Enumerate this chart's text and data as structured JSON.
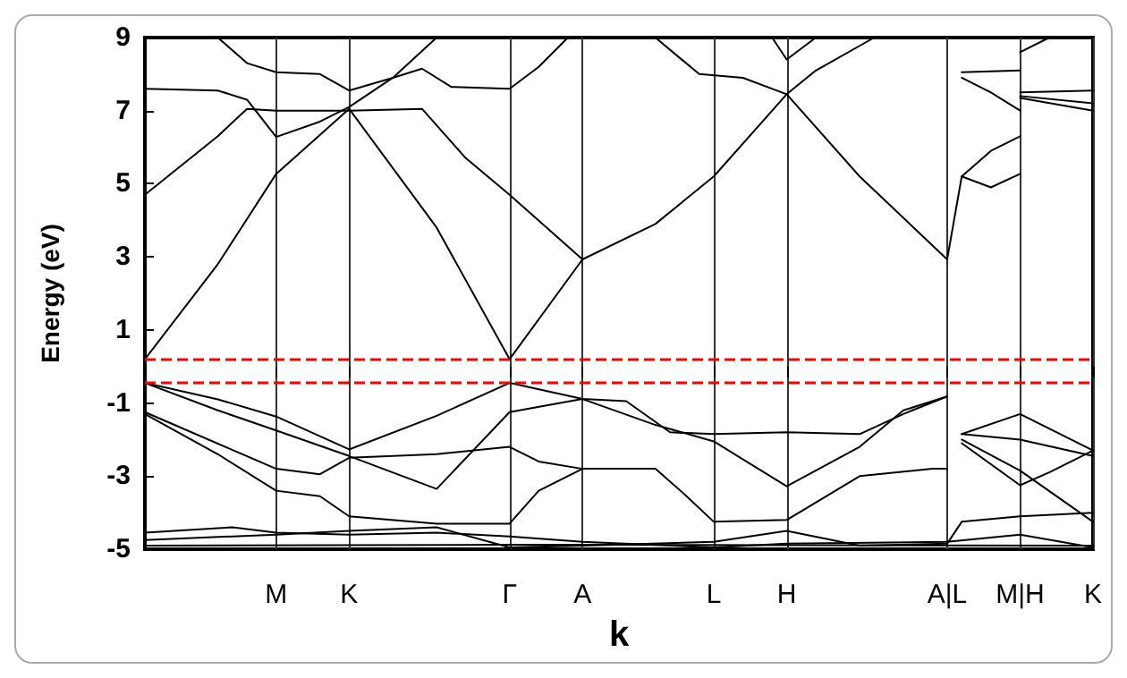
{
  "chart_data": {
    "type": "line",
    "xlabel": "k",
    "ylabel": "Energy (eV)",
    "categories": [
      null,
      null,
      null,
      null,
      null,
      null,
      null,
      null,
      null,
      "M",
      null,
      null,
      null,
      null,
      "K",
      null,
      null,
      null,
      null,
      null,
      null,
      null,
      null,
      null,
      null,
      "Γ",
      null,
      null,
      null,
      null,
      "A",
      null,
      null,
      null,
      null,
      null,
      null,
      null,
      null,
      "L",
      null,
      null,
      null,
      null,
      "H",
      null,
      null,
      null,
      null,
      null,
      null,
      null,
      null,
      null,
      null,
      "A|L",
      null,
      null,
      null,
      null,
      "M|H",
      null,
      null,
      null,
      null,
      "K"
    ],
    "ylim": [
      -5,
      9
    ],
    "yticks": [
      -5,
      -3,
      -1,
      1,
      3,
      5,
      7,
      9
    ],
    "grid": "x",
    "marker": "none",
    "line_style": "solid",
    "ref_lines": [
      {
        "axis": "y",
        "value": 0.2,
        "color": "#ff0000",
        "line_style": "dashed"
      },
      {
        "axis": "y",
        "value": -0.45,
        "color": "#ff0000",
        "line_style": "dashed"
      }
    ],
    "series": [
      {
        "color": "#000000",
        "values": [
          0.2,
          null,
          null,
          null,
          null,
          2.8,
          null,
          null,
          null,
          5.27,
          null,
          null,
          null,
          null,
          7.05,
          null,
          null,
          null,
          null,
          null,
          3.8,
          null,
          null,
          null,
          null,
          0.2,
          null,
          null,
          null,
          null,
          2.93,
          null,
          null,
          null,
          null,
          3.9,
          null,
          null,
          null,
          5.2,
          null,
          null,
          null,
          null,
          7.45,
          null,
          null,
          null,
          null,
          5.2,
          null,
          null,
          null,
          null,
          null,
          2.93,
          5.2,
          null,
          4.9,
          null,
          5.27,
          null,
          null,
          null,
          null,
          null
        ]
      },
      {
        "color": "#000000",
        "values": [
          4.7,
          null,
          null,
          null,
          null,
          6.3,
          null,
          7.05,
          null,
          7.0,
          null,
          null,
          null,
          null,
          7.0,
          null,
          null,
          null,
          null,
          7.05,
          null,
          null,
          5.7,
          null,
          null,
          4.7,
          null,
          null,
          null,
          null,
          2.93,
          null,
          null,
          null,
          null,
          null,
          null,
          null,
          null,
          null,
          null,
          null,
          null,
          null,
          null,
          null,
          null,
          null,
          null,
          null,
          null,
          null,
          null,
          null,
          null,
          null,
          null,
          null,
          null,
          null,
          null,
          null,
          null,
          null,
          null,
          null
        ]
      },
      {
        "color": "#000000",
        "values": [
          7.6,
          null,
          null,
          null,
          null,
          7.55,
          null,
          7.3,
          null,
          6.28,
          null,
          null,
          6.7,
          null,
          7.1,
          null,
          null,
          7.9,
          null,
          8.15,
          null,
          7.65,
          null,
          null,
          null,
          7.6,
          null,
          8.2,
          null,
          9.0,
          null,
          null,
          null,
          null,
          null,
          null,
          null,
          null,
          null,
          null,
          null,
          null,
          null,
          null,
          null,
          null,
          null,
          null,
          null,
          null,
          null,
          null,
          null,
          null,
          null,
          null,
          null,
          null,
          null,
          null,
          null,
          null,
          null,
          null,
          null,
          null
        ]
      },
      {
        "color": "#000000",
        "values": [
          null,
          null,
          null,
          null,
          null,
          9.0,
          null,
          8.3,
          null,
          8.05,
          null,
          null,
          8.0,
          null,
          7.55,
          null,
          null,
          7.9,
          null,
          null,
          9.0,
          null,
          null,
          null,
          null,
          null,
          null,
          null,
          null,
          null,
          null,
          null,
          null,
          null,
          null,
          null,
          null,
          null,
          null,
          null,
          null,
          null,
          null,
          null,
          null,
          null,
          null,
          null,
          null,
          null,
          null,
          null,
          null,
          null,
          null,
          null,
          null,
          null,
          null,
          null,
          null,
          null,
          null,
          null,
          null,
          null
        ]
      },
      {
        "color": "#000000",
        "values": [
          null,
          null,
          null,
          null,
          null,
          null,
          null,
          null,
          null,
          null,
          null,
          null,
          null,
          null,
          null,
          null,
          null,
          null,
          null,
          null,
          null,
          null,
          null,
          null,
          null,
          null,
          null,
          null,
          null,
          null,
          null,
          null,
          null,
          null,
          null,
          null,
          null,
          null,
          null,
          null,
          null,
          null,
          null,
          9.0,
          8.4,
          null,
          9.0,
          null,
          null,
          null,
          null,
          null,
          null,
          null,
          null,
          null,
          null,
          null,
          null,
          null,
          null,
          null,
          null,
          null,
          null,
          null
        ]
      },
      {
        "color": "#000000",
        "values": [
          null,
          null,
          null,
          null,
          null,
          null,
          null,
          null,
          null,
          null,
          null,
          null,
          null,
          null,
          null,
          null,
          null,
          null,
          null,
          null,
          null,
          null,
          null,
          null,
          null,
          null,
          null,
          null,
          null,
          null,
          null,
          null,
          null,
          null,
          null,
          9.0,
          null,
          null,
          8.0,
          null,
          null,
          7.9,
          null,
          null,
          7.45,
          null,
          8.1,
          null,
          null,
          null,
          9.0,
          null,
          null,
          null,
          null,
          null,
          null,
          null,
          null,
          null,
          null,
          null,
          null,
          null,
          null,
          null
        ]
      },
      {
        "color": "#000000",
        "values": [
          null,
          null,
          null,
          null,
          null,
          null,
          null,
          null,
          null,
          null,
          null,
          null,
          null,
          null,
          null,
          null,
          null,
          null,
          null,
          null,
          null,
          null,
          null,
          null,
          null,
          null,
          null,
          null,
          null,
          null,
          null,
          null,
          null,
          null,
          null,
          null,
          null,
          null,
          null,
          null,
          null,
          null,
          null,
          null,
          null,
          null,
          null,
          null,
          null,
          null,
          null,
          null,
          null,
          null,
          null,
          null,
          8.05,
          null,
          null,
          null,
          8.1,
          null,
          null,
          null,
          null,
          null
        ]
      },
      {
        "color": "#000000",
        "values": [
          null,
          null,
          null,
          null,
          null,
          null,
          null,
          null,
          null,
          null,
          null,
          null,
          null,
          null,
          null,
          null,
          null,
          null,
          null,
          null,
          null,
          null,
          null,
          null,
          null,
          null,
          null,
          null,
          null,
          null,
          null,
          null,
          null,
          null,
          null,
          null,
          null,
          null,
          null,
          null,
          null,
          null,
          null,
          null,
          null,
          null,
          null,
          null,
          null,
          null,
          null,
          null,
          null,
          null,
          null,
          null,
          7.9,
          null,
          7.5,
          null,
          7.0,
          null,
          null,
          null,
          null,
          null
        ]
      },
      {
        "color": "#000000",
        "values": [
          null,
          null,
          null,
          null,
          null,
          null,
          null,
          null,
          null,
          null,
          null,
          null,
          null,
          null,
          null,
          null,
          null,
          null,
          null,
          null,
          null,
          null,
          null,
          null,
          null,
          null,
          null,
          null,
          null,
          null,
          null,
          null,
          null,
          null,
          null,
          null,
          null,
          null,
          null,
          null,
          null,
          null,
          null,
          null,
          null,
          null,
          null,
          null,
          null,
          null,
          null,
          null,
          null,
          null,
          null,
          null,
          5.2,
          null,
          5.9,
          null,
          6.3,
          null,
          null,
          null,
          null,
          null
        ]
      },
      {
        "color": "#000000",
        "values": [
          null,
          null,
          null,
          null,
          null,
          null,
          null,
          null,
          null,
          null,
          null,
          null,
          null,
          null,
          null,
          null,
          null,
          null,
          null,
          null,
          null,
          null,
          null,
          null,
          null,
          null,
          null,
          null,
          null,
          null,
          null,
          null,
          null,
          null,
          null,
          null,
          null,
          null,
          null,
          null,
          null,
          null,
          null,
          null,
          null,
          null,
          null,
          null,
          null,
          null,
          null,
          null,
          null,
          null,
          null,
          null,
          null,
          null,
          null,
          null,
          8.6,
          null,
          9.0,
          null,
          null,
          null
        ]
      },
      {
        "color": "#000000",
        "values": [
          null,
          null,
          null,
          null,
          null,
          null,
          null,
          null,
          null,
          null,
          null,
          null,
          null,
          null,
          null,
          null,
          null,
          null,
          null,
          null,
          null,
          null,
          null,
          null,
          null,
          null,
          null,
          null,
          null,
          null,
          null,
          null,
          null,
          null,
          null,
          null,
          null,
          null,
          null,
          null,
          null,
          null,
          null,
          null,
          null,
          null,
          null,
          null,
          null,
          null,
          null,
          null,
          null,
          null,
          null,
          null,
          null,
          null,
          null,
          null,
          7.5,
          null,
          null,
          null,
          null,
          7.55
        ]
      },
      {
        "color": "#000000",
        "values": [
          null,
          null,
          null,
          null,
          null,
          null,
          null,
          null,
          null,
          null,
          null,
          null,
          null,
          null,
          null,
          null,
          null,
          null,
          null,
          null,
          null,
          null,
          null,
          null,
          null,
          null,
          null,
          null,
          null,
          null,
          null,
          null,
          null,
          null,
          null,
          null,
          null,
          null,
          null,
          null,
          null,
          null,
          null,
          null,
          null,
          null,
          null,
          null,
          null,
          null,
          null,
          null,
          null,
          null,
          null,
          null,
          null,
          null,
          null,
          null,
          7.4,
          null,
          null,
          null,
          null,
          7.2
        ]
      },
      {
        "color": "#000000",
        "values": [
          null,
          null,
          null,
          null,
          null,
          null,
          null,
          null,
          null,
          null,
          null,
          null,
          null,
          null,
          null,
          null,
          null,
          null,
          null,
          null,
          null,
          null,
          null,
          null,
          null,
          null,
          null,
          null,
          null,
          null,
          null,
          null,
          null,
          null,
          null,
          null,
          null,
          null,
          null,
          null,
          null,
          null,
          null,
          null,
          null,
          null,
          null,
          null,
          null,
          null,
          null,
          null,
          null,
          null,
          null,
          null,
          null,
          null,
          null,
          null,
          7.35,
          null,
          null,
          null,
          null,
          7.0
        ]
      },
      {
        "color": "#000000",
        "values": [
          -0.45,
          null,
          null,
          null,
          null,
          -0.9,
          null,
          null,
          null,
          -1.37,
          null,
          null,
          null,
          null,
          -2.27,
          null,
          null,
          null,
          null,
          null,
          -1.35,
          null,
          null,
          null,
          null,
          -0.45,
          null,
          null,
          null,
          null,
          -0.89,
          null,
          null,
          -0.95,
          null,
          null,
          -1.8,
          null,
          null,
          -1.85,
          null,
          null,
          null,
          null,
          -1.8,
          null,
          null,
          null,
          null,
          -1.85,
          null,
          null,
          -1.3,
          null,
          null,
          -0.82,
          null,
          null,
          null,
          null,
          null,
          null,
          null,
          null,
          null,
          null
        ]
      },
      {
        "color": "#000000",
        "values": [
          -0.45,
          null,
          null,
          null,
          null,
          -1.2,
          null,
          null,
          null,
          -1.75,
          null,
          null,
          null,
          null,
          -2.45,
          null,
          null,
          null,
          null,
          null,
          -3.35,
          null,
          null,
          null,
          null,
          -1.25,
          null,
          null,
          null,
          null,
          -0.89,
          null,
          null,
          null,
          null,
          -1.6,
          null,
          null,
          null,
          -2.05,
          null,
          null,
          null,
          null,
          -3.28,
          null,
          null,
          null,
          null,
          -2.2,
          null,
          null,
          -1.2,
          null,
          null,
          -0.82,
          null,
          null,
          null,
          null,
          null,
          null,
          null,
          null,
          null,
          null
        ]
      },
      {
        "color": "#000000",
        "values": [
          -1.25,
          null,
          null,
          null,
          null,
          null,
          null,
          null,
          null,
          -2.8,
          null,
          null,
          -2.95,
          null,
          -2.5,
          null,
          null,
          null,
          null,
          null,
          -2.4,
          null,
          null,
          null,
          null,
          -2.2,
          null,
          -2.6,
          null,
          null,
          -2.8,
          null,
          null,
          null,
          null,
          -2.8,
          null,
          -3.5,
          null,
          -4.25,
          null,
          null,
          null,
          null,
          -4.2,
          null,
          null,
          null,
          null,
          -3.0,
          null,
          null,
          null,
          null,
          -2.8,
          -2.8,
          null,
          null,
          null,
          null,
          null,
          null,
          null,
          null,
          null,
          null
        ]
      },
      {
        "color": "#000000",
        "values": [
          -1.3,
          null,
          null,
          null,
          null,
          -2.4,
          null,
          null,
          null,
          -3.4,
          null,
          null,
          -3.55,
          null,
          -4.1,
          null,
          null,
          null,
          null,
          null,
          -4.3,
          null,
          null,
          null,
          null,
          -4.3,
          null,
          -3.4,
          null,
          null,
          -2.8,
          null,
          null,
          null,
          null,
          null,
          null,
          null,
          null,
          null,
          null,
          null,
          null,
          null,
          null,
          null,
          null,
          null,
          null,
          null,
          null,
          null,
          null,
          null,
          null,
          null,
          null,
          null,
          null,
          null,
          null,
          null,
          null,
          null,
          null,
          null
        ]
      },
      {
        "color": "#000000",
        "values": [
          -4.55,
          null,
          null,
          null,
          null,
          null,
          -4.4,
          null,
          null,
          -4.55,
          null,
          null,
          null,
          null,
          -4.6,
          null,
          null,
          null,
          null,
          null,
          -4.55,
          null,
          null,
          null,
          null,
          -4.65,
          null,
          null,
          null,
          null,
          -4.8,
          null,
          null,
          null,
          null,
          null,
          null,
          null,
          null,
          -4.95,
          null,
          null,
          null,
          null,
          -4.85,
          null,
          null,
          null,
          null,
          null,
          null,
          null,
          null,
          null,
          null,
          -4.8,
          null,
          null,
          null,
          null,
          -4.6,
          null,
          null,
          null,
          null,
          -4.95
        ]
      },
      {
        "color": "#000000",
        "values": [
          -4.75,
          null,
          null,
          null,
          null,
          null,
          null,
          null,
          null,
          -4.6,
          null,
          null,
          null,
          null,
          -4.5,
          null,
          null,
          null,
          null,
          null,
          -4.4,
          null,
          null,
          null,
          null,
          -4.95,
          null,
          null,
          null,
          null,
          -4.9,
          null,
          null,
          null,
          null,
          null,
          null,
          null,
          null,
          -4.8,
          null,
          null,
          null,
          null,
          -4.5,
          null,
          null,
          null,
          null,
          -4.9,
          null,
          null,
          null,
          null,
          null,
          -4.85,
          -4.25,
          null,
          null,
          null,
          -4.1,
          null,
          null,
          null,
          null,
          -4.0
        ]
      },
      {
        "color": "#000000",
        "values": [
          -4.9,
          null,
          null,
          null,
          null,
          null,
          null,
          null,
          null,
          null,
          null,
          null,
          null,
          null,
          null,
          null,
          null,
          null,
          null,
          null,
          null,
          null,
          null,
          null,
          null,
          -4.88,
          null,
          null,
          null,
          null,
          null,
          null,
          null,
          null,
          null,
          null,
          null,
          null,
          null,
          null,
          null,
          null,
          null,
          null,
          null,
          null,
          null,
          null,
          null,
          null,
          null,
          null,
          null,
          null,
          null,
          null,
          null,
          null,
          null,
          null,
          null,
          null,
          null,
          null,
          null,
          -4.9
        ]
      },
      {
        "color": "#000000",
        "values": [
          null,
          null,
          null,
          null,
          null,
          null,
          null,
          null,
          null,
          null,
          null,
          null,
          null,
          null,
          null,
          null,
          null,
          null,
          null,
          null,
          null,
          null,
          null,
          null,
          null,
          null,
          null,
          null,
          null,
          null,
          null,
          null,
          null,
          null,
          null,
          null,
          null,
          null,
          null,
          null,
          null,
          null,
          null,
          null,
          null,
          null,
          null,
          null,
          null,
          null,
          null,
          null,
          null,
          null,
          null,
          null,
          -1.85,
          null,
          null,
          null,
          -1.3,
          null,
          null,
          null,
          null,
          -2.3
        ]
      },
      {
        "color": "#000000",
        "values": [
          null,
          null,
          null,
          null,
          null,
          null,
          null,
          null,
          null,
          null,
          null,
          null,
          null,
          null,
          null,
          null,
          null,
          null,
          null,
          null,
          null,
          null,
          null,
          null,
          null,
          null,
          null,
          null,
          null,
          null,
          null,
          null,
          null,
          null,
          null,
          null,
          null,
          null,
          null,
          null,
          null,
          null,
          null,
          null,
          null,
          null,
          null,
          null,
          null,
          null,
          null,
          null,
          null,
          null,
          null,
          null,
          -1.85,
          null,
          null,
          null,
          -2.0,
          null,
          null,
          null,
          null,
          -2.45
        ]
      },
      {
        "color": "#000000",
        "values": [
          null,
          null,
          null,
          null,
          null,
          null,
          null,
          null,
          null,
          null,
          null,
          null,
          null,
          null,
          null,
          null,
          null,
          null,
          null,
          null,
          null,
          null,
          null,
          null,
          null,
          null,
          null,
          null,
          null,
          null,
          null,
          null,
          null,
          null,
          null,
          null,
          null,
          null,
          null,
          null,
          null,
          null,
          null,
          null,
          null,
          null,
          null,
          null,
          null,
          null,
          null,
          null,
          null,
          null,
          null,
          null,
          -2.0,
          null,
          null,
          null,
          -2.85,
          null,
          null,
          null,
          null,
          -4.25
        ]
      },
      {
        "color": "#000000",
        "values": [
          null,
          null,
          null,
          null,
          null,
          null,
          null,
          null,
          null,
          null,
          null,
          null,
          null,
          null,
          null,
          null,
          null,
          null,
          null,
          null,
          null,
          null,
          null,
          null,
          null,
          null,
          null,
          null,
          null,
          null,
          null,
          null,
          null,
          null,
          null,
          null,
          null,
          null,
          null,
          null,
          null,
          null,
          null,
          null,
          null,
          null,
          null,
          null,
          null,
          null,
          null,
          null,
          null,
          null,
          null,
          null,
          -2.1,
          null,
          null,
          null,
          -3.25,
          null,
          -2.9,
          null,
          null,
          -2.3
        ]
      }
    ]
  }
}
